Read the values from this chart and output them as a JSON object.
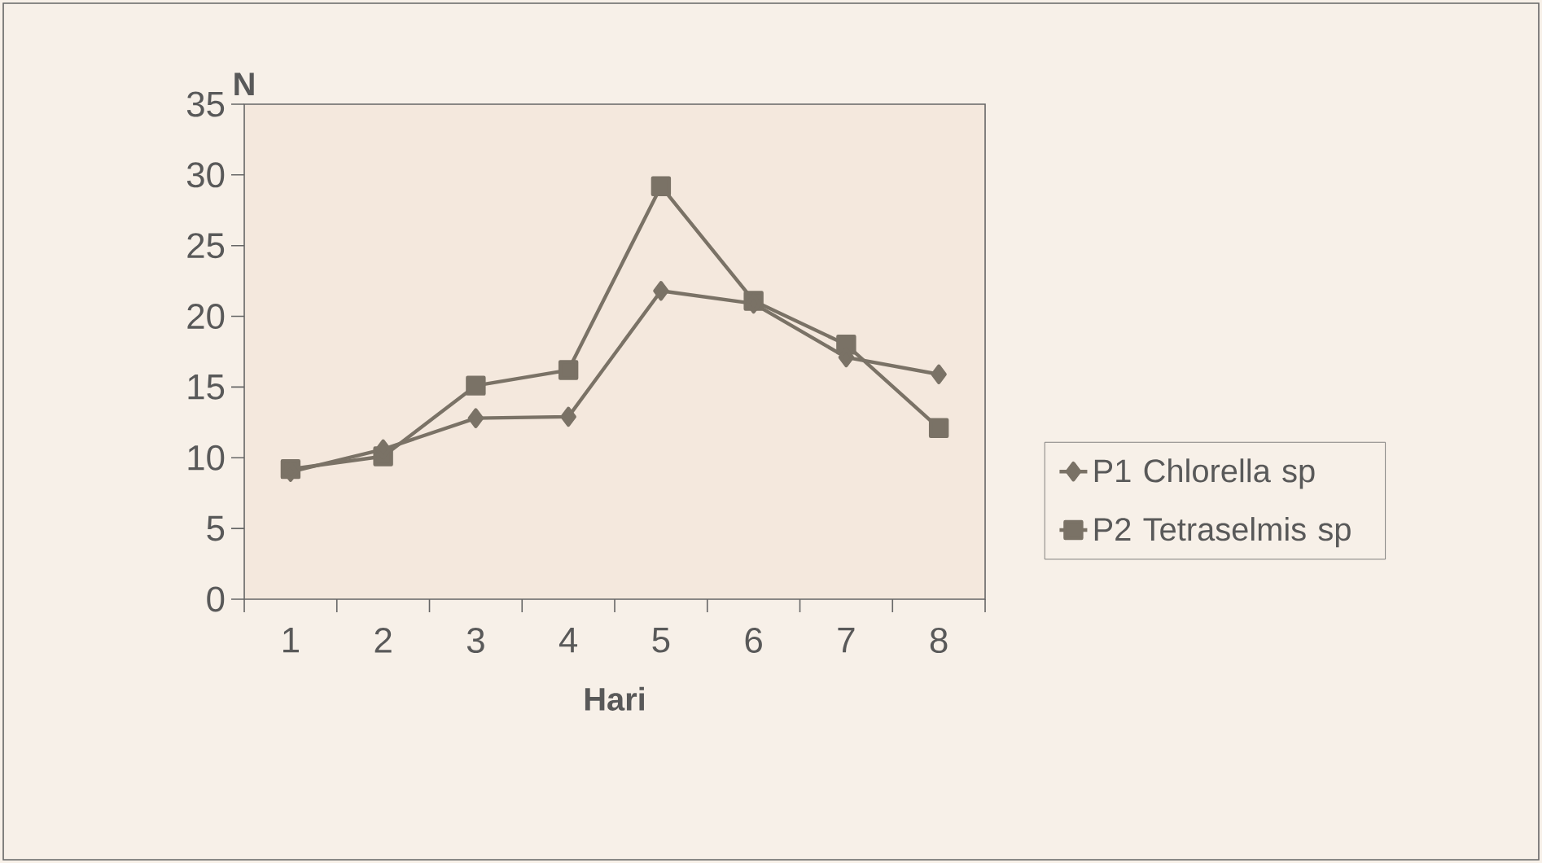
{
  "chart_data": {
    "type": "line",
    "xlabel": "Hari",
    "ylabel": "N",
    "categories": [
      "1",
      "2",
      "3",
      "4",
      "5",
      "6",
      "7",
      "8"
    ],
    "series": [
      {
        "name": "P1 Chlorella sp",
        "color": "#7a7266",
        "marker": "diamond",
        "values": [
          9,
          10.6,
          12.8,
          12.9,
          21.8,
          20.9,
          17.1,
          15.9
        ]
      },
      {
        "name": "P2 Tetraselmis sp",
        "color": "#7a7266",
        "marker": "square",
        "values": [
          9.2,
          10.1,
          15.1,
          16.2,
          29.2,
          21.1,
          18,
          12.1
        ]
      }
    ],
    "ylim": [
      0,
      35
    ],
    "yticks": [
      0,
      5,
      10,
      15,
      20,
      25,
      30,
      35
    ],
    "grid": false,
    "legend": "right",
    "line_style": "solid"
  }
}
